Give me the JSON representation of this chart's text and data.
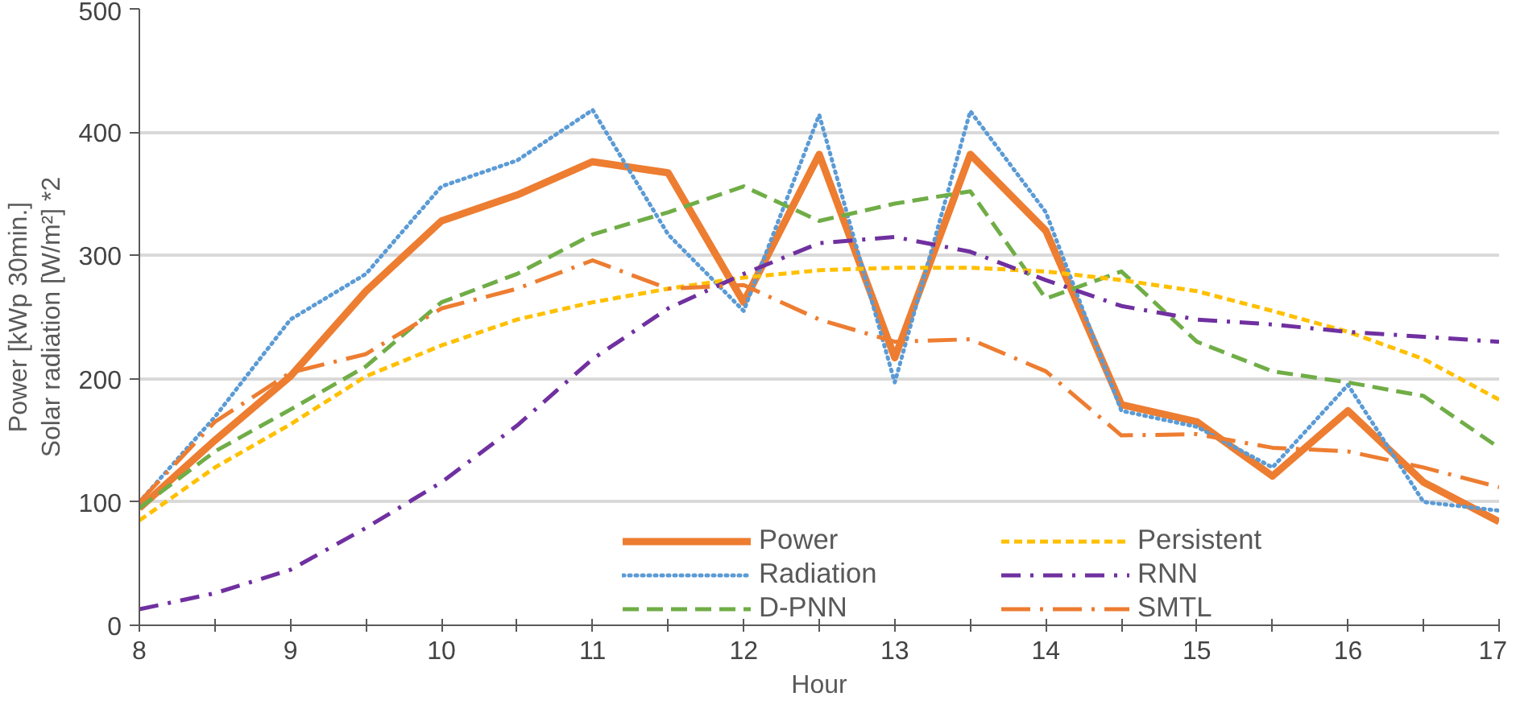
{
  "chart_data": {
    "type": "line",
    "xlabel": "Hour",
    "ylabel": "Power [kWp 30min.]\nSolar radiation [W/m²] *2",
    "x": [
      8,
      8.5,
      9,
      9.5,
      10,
      10.5,
      11,
      11.5,
      12,
      12.5,
      13,
      13.5,
      14,
      14.5,
      15,
      15.5,
      16,
      16.5,
      17
    ],
    "xlim": [
      8,
      17
    ],
    "xticks": [
      8,
      {
        "value": 8.5,
        "label": null
      },
      9,
      {
        "value": 9.5,
        "label": null
      },
      10,
      {
        "value": 10.5,
        "label": null
      },
      11,
      {
        "value": 11.5,
        "label": null
      },
      12,
      {
        "value": 12.5,
        "label": null
      },
      13,
      {
        "value": 13.5,
        "label": null
      },
      14,
      {
        "value": 14.5,
        "label": null
      },
      15,
      {
        "value": 15.5,
        "label": null
      },
      16,
      {
        "value": 16.5,
        "label": null
      },
      17
    ],
    "ylim": [
      0,
      500
    ],
    "yticks": [
      0,
      100,
      200,
      300,
      400,
      500
    ],
    "grid": "y",
    "legend": "bottom",
    "series": [
      {
        "name": "Power",
        "color": "#ed7d31",
        "line_style": "solid",
        "values": [
          95,
          150,
          202,
          271,
          328,
          349,
          376,
          367,
          262,
          382,
          217,
          382,
          320,
          179,
          165,
          121,
          174,
          116,
          84
        ]
      },
      {
        "name": "Radiation",
        "color": "#5b9bd5",
        "line_style": "dotted",
        "values": [
          100,
          169,
          248,
          285,
          356,
          377,
          418,
          317,
          255,
          414,
          197,
          417,
          335,
          174,
          161,
          128,
          195,
          100,
          93
        ]
      },
      {
        "name": "D-PNN",
        "color": "#70ad47",
        "line_style": "dashed",
        "values": [
          95,
          141,
          175,
          210,
          262,
          285,
          317,
          335,
          356,
          328,
          342,
          352,
          265,
          287,
          230,
          206,
          197,
          186,
          144
        ]
      },
      {
        "name": "Persistent",
        "color": "#ffc000",
        "line_style": "short_dashed",
        "values": [
          85,
          128,
          163,
          202,
          227,
          248,
          262,
          273,
          282,
          288,
          290,
          290,
          287,
          280,
          271,
          255,
          238,
          216,
          183
        ]
      },
      {
        "name": "RNN",
        "color": "#7030a0",
        "line_style": "dashdot",
        "values": [
          13,
          26,
          45,
          79,
          116,
          162,
          216,
          257,
          285,
          310,
          315,
          303,
          280,
          259,
          248,
          244,
          238,
          234,
          230
        ]
      },
      {
        "name": "SMTL",
        "color": "#ed7d31",
        "line_style": "longdashdot",
        "values": [
          100,
          165,
          205,
          220,
          257,
          273,
          296,
          273,
          276,
          248,
          230,
          232,
          206,
          154,
          155,
          144,
          141,
          128,
          112
        ]
      }
    ]
  }
}
